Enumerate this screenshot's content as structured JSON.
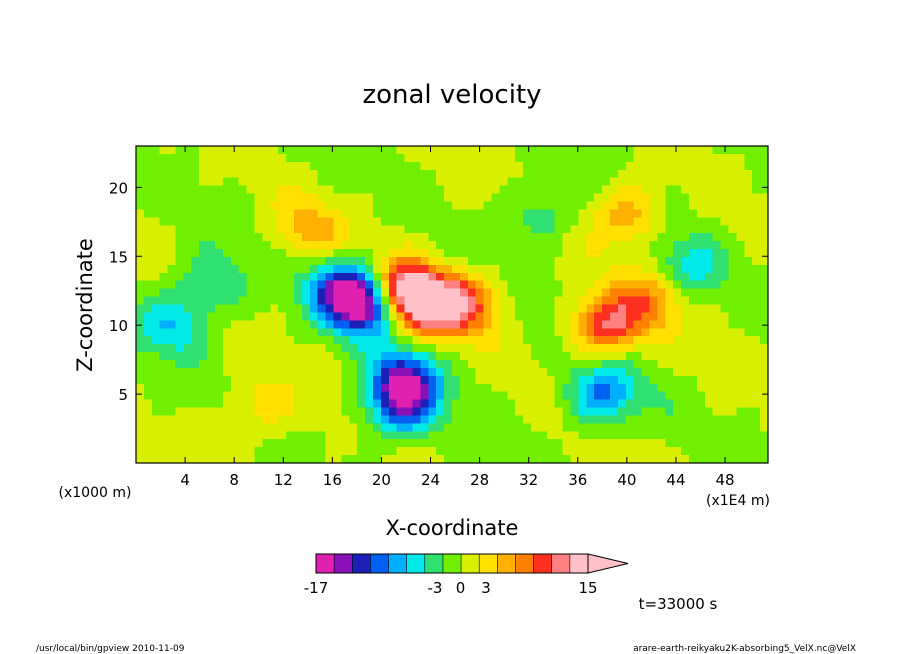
{
  "chart_data": {
    "type": "heatmap",
    "title": "zonal velocity",
    "xlabel": "X-coordinate",
    "ylabel": "Z-coordinate",
    "x_unit": "(x1E4 m)",
    "y_unit": "(x1000 m)",
    "xlim": [
      0,
      51.5
    ],
    "ylim": [
      0,
      23
    ],
    "x_ticks": [
      4,
      8,
      12,
      16,
      20,
      24,
      28,
      32,
      36,
      40,
      44,
      48
    ],
    "y_ticks": [
      5,
      10,
      15,
      20
    ],
    "colorbar": {
      "min": -17,
      "max": 15,
      "tick_labels": [
        "-17",
        "-3",
        "0",
        "3",
        "15"
      ],
      "tick_values": [
        -17,
        -3,
        0,
        3,
        15
      ],
      "colors": [
        "#e020b0",
        "#8a10b8",
        "#1a20b8",
        "#0060f0",
        "#00b0ff",
        "#00e8e8",
        "#30e070",
        "#70f000",
        "#d8f000",
        "#ffe000",
        "#ffb000",
        "#ff8000",
        "#ff3020",
        "#ff8080",
        "#ffc0c8"
      ]
    },
    "features": [
      {
        "x": 21.5,
        "z": 12.5,
        "u": 15
      },
      {
        "x": 19,
        "z": 11.5,
        "u": -15
      },
      {
        "x": 17,
        "z": 12.5,
        "u": -12
      },
      {
        "x": 24,
        "z": 11.5,
        "u": 12
      },
      {
        "x": 27,
        "z": 11.5,
        "u": 8
      },
      {
        "x": 22,
        "z": 6,
        "u": -12
      },
      {
        "x": 21.5,
        "z": 4,
        "u": -9
      },
      {
        "x": 38.5,
        "z": 10,
        "u": 11
      },
      {
        "x": 38,
        "z": 5,
        "u": -9
      },
      {
        "x": 42,
        "z": 12,
        "u": 6
      },
      {
        "x": 3,
        "z": 10,
        "u": -6
      },
      {
        "x": 6,
        "z": 13,
        "u": -5
      },
      {
        "x": 45,
        "z": 14,
        "u": -5
      },
      {
        "x": 14,
        "z": 17,
        "u": 5
      },
      {
        "x": 40,
        "z": 18,
        "u": 6
      },
      {
        "x": 10,
        "z": 4,
        "u": 4
      },
      {
        "x": 33,
        "z": 18,
        "u": -4
      }
    ]
  },
  "annotation_time": "t=33000 s",
  "footer_left": "/usr/local/bin/gpview  2010-11-09",
  "footer_right": "arare-earth-reikyaku2K-absorbing5_VelX.nc@VelX"
}
